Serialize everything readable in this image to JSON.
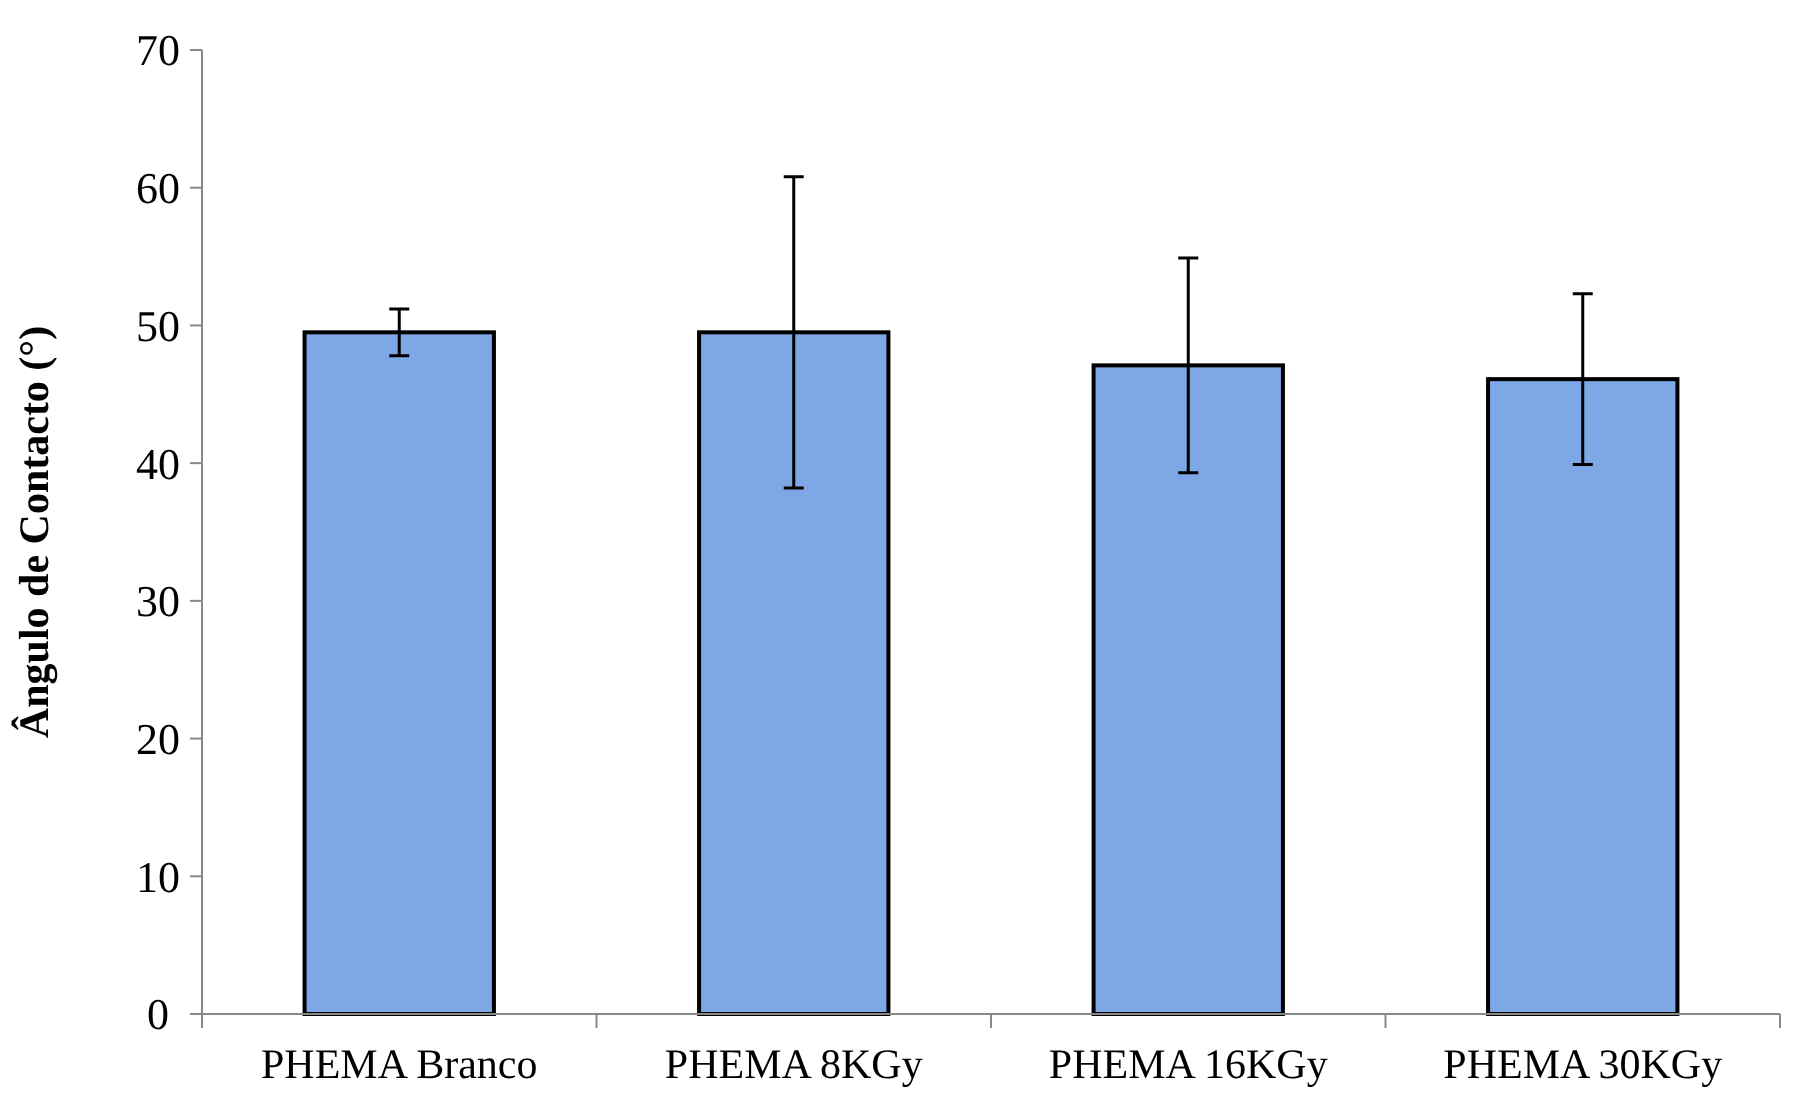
{
  "chart_data": {
    "type": "bar",
    "ylabel": "Ângulo de Contacto (°)",
    "categories": [
      "PHEMA Branco",
      "PHEMA 8KGy",
      "PHEMA 16KGy",
      "PHEMA 30KGy"
    ],
    "values": [
      49.5,
      49.5,
      47.1,
      46.1
    ],
    "errors": [
      1.7,
      11.3,
      7.8,
      6.2
    ],
    "color": "#7ea7e6",
    "ylim": [
      0,
      70
    ],
    "yticks": [
      0,
      10,
      20,
      30,
      40,
      50,
      60,
      70
    ],
    "grid": false
  }
}
